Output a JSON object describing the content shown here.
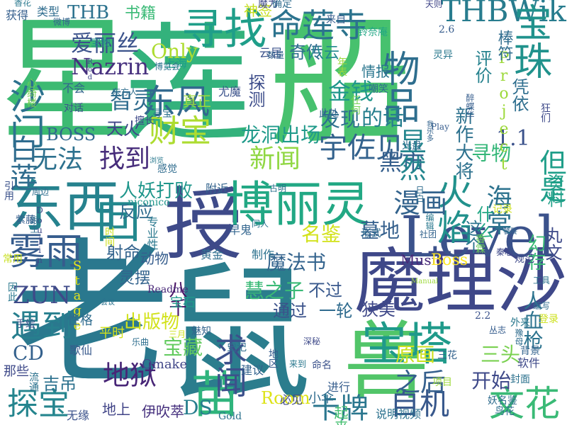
{
  "words": [
    {
      "text": "星",
      "color": "#3dba72"
    },
    {
      "text": "莲",
      "color": "#33b27c"
    },
    {
      "text": "船",
      "color": "#47c16e"
    },
    {
      "text": "老",
      "color": "#2a788e"
    },
    {
      "text": "鼠",
      "color": "#2b7d8d"
    },
    {
      "text": "魔理沙",
      "color": "#3f4889"
    },
    {
      "text": "Level",
      "color": "#3b528b"
    },
    {
      "text": "授",
      "color": "#3e4a89"
    },
    {
      "text": "博丽灵",
      "color": "#22a884"
    },
    {
      "text": "东西",
      "color": "#26828e"
    },
    {
      "text": "回",
      "color": "#23888e"
    },
    {
      "text": "兽",
      "color": "#52c569"
    },
    {
      "text": "寻找",
      "color": "#1f9e89"
    },
    {
      "text": "命莲寺",
      "color": "#2c738e"
    },
    {
      "text": "THBWiki",
      "color": "#287c8e"
    },
    {
      "text": "宝珠",
      "color": "#20928c"
    },
    {
      "text": "物品",
      "color": "#2e6e8e"
    },
    {
      "text": "雾雨",
      "color": "#365c8d"
    },
    {
      "text": "宝塔",
      "color": "#1f9a8a"
    },
    {
      "text": "苗",
      "color": "#2fb47c"
    },
    {
      "text": "火焰",
      "color": "#21918c"
    },
    {
      "text": "东风",
      "color": "#31688e"
    },
    {
      "text": "沙门",
      "color": "#2c728e"
    },
    {
      "text": "白莲",
      "color": "#2f6c8e"
    },
    {
      "text": "地狱",
      "color": "#482677"
    },
    {
      "text": "遇到",
      "color": "#277f8e"
    },
    {
      "text": "探宝",
      "color": "#25858e"
    },
    {
      "text": "卡牌",
      "color": "#2a768e"
    },
    {
      "text": "自机",
      "color": "#38588c"
    },
    {
      "text": "文花",
      "color": "#3aba76"
    },
    {
      "text": "财宝",
      "color": "#addc30"
    },
    {
      "text": "宇佐见",
      "color": "#33628d"
    },
    {
      "text": "找到",
      "color": "#472d7b"
    },
    {
      "text": "无法",
      "color": "#2d718e"
    },
    {
      "text": "黑市",
      "color": "#355f8d"
    },
    {
      "text": "新闻",
      "color": "#90d743"
    },
    {
      "text": "求闻",
      "color": "#3c508b"
    },
    {
      "text": "显然",
      "color": "#24868e"
    },
    {
      "text": "但是",
      "color": "#1f9e89"
    },
    {
      "text": "海棠",
      "color": "#2c728e"
    },
    {
      "text": "漫画",
      "color": "#33638d"
    },
    {
      "text": "Nazrin",
      "color": "#46307e"
    },
    {
      "text": "爱丽丝",
      "color": "#3b528b"
    },
    {
      "text": "Only",
      "color": "#addc30"
    },
    {
      "text": "智灵",
      "color": "#2f6c8e"
    },
    {
      "text": "天火",
      "color": "#404688"
    },
    {
      "text": "BOSS",
      "color": "#31688e"
    },
    {
      "text": "金钱",
      "color": "#1f968b"
    },
    {
      "text": "发现",
      "color": "#2d708e"
    },
    {
      "text": "的话",
      "color": "#277f8e"
    },
    {
      "text": "龙洞出场",
      "color": "#1f9a8a"
    },
    {
      "text": "寻物",
      "color": "#35b779"
    },
    {
      "text": "1.1",
      "color": "#3b528b"
    },
    {
      "text": "评价",
      "color": "#26828e"
    },
    {
      "text": "新作大将",
      "color": "#2d718e"
    },
    {
      "text": "凭依",
      "color": "#2e6e8e"
    },
    {
      "text": "资料",
      "color": "#1fa088"
    },
    {
      "text": "丸文",
      "color": "#3e4a89"
    },
    {
      "text": "慧之子",
      "color": "#3aba76"
    },
    {
      "text": "不过",
      "color": "#38588c"
    },
    {
      "text": "魔法书",
      "color": "#33638d"
    },
    {
      "text": "ZUN",
      "color": "#3e4a89"
    },
    {
      "text": "CD",
      "color": "#34618d"
    },
    {
      "text": "出版物",
      "color": "#d2e21b"
    },
    {
      "text": "宝藏",
      "color": "#63cb5f"
    },
    {
      "text": "之后",
      "color": "#355f8d"
    },
    {
      "text": "开始",
      "color": "#3e4989"
    },
    {
      "text": "原画",
      "color": "#cde11d"
    },
    {
      "text": "人血枪",
      "color": "#2c738e"
    },
    {
      "text": "墓地",
      "color": "#35608d"
    },
    {
      "text": "名鉴",
      "color": "#d2e21b"
    },
    {
      "text": "人妖打败",
      "color": "#1f968b"
    },
    {
      "text": "反应",
      "color": "#2f6c8e"
    },
    {
      "text": "射命",
      "color": "#33638d"
    },
    {
      "text": "八千",
      "color": "#471063"
    },
    {
      "text": "动物",
      "color": "#365d8d"
    },
    {
      "text": "通过",
      "color": "#3b528b"
    },
    {
      "text": "一轮",
      "color": "#2f6b8e"
    },
    {
      "text": "狭美",
      "color": "#3f4889"
    },
    {
      "text": "这个",
      "color": "#2c738e"
    },
    {
      "text": "什么",
      "color": "#22a785"
    },
    {
      "text": "幻存",
      "color": "#3aba76"
    },
    {
      "text": "DS",
      "color": "#277e8e"
    },
    {
      "text": "三头",
      "color": "#7ad151"
    },
    {
      "text": "吉吊",
      "color": "#2c718e"
    },
    {
      "text": "地上",
      "color": "#414487"
    },
    {
      "text": "伊吹萃",
      "color": "#46307e"
    },
    {
      "text": "Room",
      "color": "#dde318"
    },
    {
      "text": "Music",
      "color": "#482878"
    },
    {
      "text": "Boss",
      "color": "#fde725"
    },
    {
      "text": "THB",
      "color": "#2c728e"
    },
    {
      "text": "书籍",
      "color": "#3aba76"
    },
    {
      "text": "神签",
      "color": "#c8e020"
    },
    {
      "text": "奇传",
      "color": "#2e6d8e"
    },
    {
      "text": "八云",
      "color": "#23888e"
    },
    {
      "text": "Project",
      "color": "#9dd93b"
    },
    {
      "text": "真正",
      "color": "#9dd93b"
    },
    {
      "text": "探测",
      "color": "#3d4d8a"
    },
    {
      "text": "尤魔",
      "color": "#3b528b"
    },
    {
      "text": "情报",
      "color": "#2a768e"
    },
    {
      "text": "Stage",
      "color": "#e5e419"
    },
    {
      "text": "灵摆",
      "color": "#33638d"
    },
    {
      "text": "Readme",
      "color": "#482878"
    },
    {
      "text": "宝石",
      "color": "#1f9a8a"
    },
    {
      "text": "性格",
      "color": "#2f6c8e"
    },
    {
      "text": "平时",
      "color": "#d5e21a"
    },
    {
      "text": "黄金",
      "color": "#2e6e8e"
    },
    {
      "text": "制作",
      "color": "#2c728e"
    },
    {
      "text": "早鬼",
      "color": "#32658e"
    },
    {
      "text": "niconico",
      "color": "#1f968b"
    },
    {
      "text": "专业性",
      "color": "#2a788e"
    },
    {
      "text": "时间",
      "color": "#cde11d"
    },
    {
      "text": "那些",
      "color": "#3e4989"
    },
    {
      "text": "Omake",
      "color": "#404688"
    },
    {
      "text": "歌仙",
      "color": "#38598c"
    },
    {
      "text": "建议",
      "color": "#33638d"
    },
    {
      "text": "说明视频",
      "color": "#2c728e"
    },
    {
      "text": "小伞",
      "color": "#2f6c8e"
    },
    {
      "text": "必见",
      "color": "#3e4989"
    },
    {
      "text": "起来",
      "color": "#44bf70"
    },
    {
      "text": "进行",
      "color": "#365d8d"
    },
    {
      "text": "无缘",
      "color": "#3b528b"
    },
    {
      "text": "Gold",
      "color": "#2c728e"
    },
    {
      "text": "获得",
      "color": "#355f8d"
    },
    {
      "text": "类型",
      "color": "#2f6c8e"
    },
    {
      "text": "微博",
      "color": "#33638d"
    },
    {
      "text": "香花",
      "color": "#2a788e"
    },
    {
      "text": "魔力",
      "color": "#3e4989"
    },
    {
      "text": "确定",
      "color": "#2f6b8e"
    },
    {
      "text": "天则",
      "color": "#404688"
    },
    {
      "text": "宝物",
      "color": "#23898e"
    },
    {
      "text": "来自",
      "color": "#365c8d"
    },
    {
      "text": "铃奈庵",
      "color": "#22a785"
    },
    {
      "text": "2.6",
      "color": "#365c8d"
    },
    {
      "text": "棒符",
      "color": "#2f6c8e"
    },
    {
      "text": "云居",
      "color": "#3b528b"
    },
    {
      "text": "数量",
      "color": "#33638d"
    },
    {
      "text": "年表",
      "color": "#9dd93b"
    },
    {
      "text": "灵异",
      "color": "#2a788e"
    },
    {
      "text": "上海",
      "color": "#1f9e89"
    },
    {
      "text": "博览会",
      "color": "#2c728e"
    },
    {
      "text": "Rod",
      "color": "#3e4989"
    },
    {
      "text": "东方人",
      "color": "#2e6e8e"
    },
    {
      "text": "醉蝶华",
      "color": "#365d8d"
    },
    {
      "text": "不会",
      "color": "#33638d"
    },
    {
      "text": "对话",
      "color": "#3b528b"
    },
    {
      "text": "心绮楼",
      "color": "#75d054"
    },
    {
      "text": "擅长",
      "color": "#3e4989"
    },
    {
      "text": "寻宝",
      "color": "#2c728e"
    },
    {
      "text": "此处",
      "color": "#33638d"
    },
    {
      "text": "光盘",
      "color": "#2f6c8e"
    },
    {
      "text": "任何",
      "color": "#75d054"
    },
    {
      "text": "Play",
      "color": "#365c8d"
    },
    {
      "text": "狂们",
      "color": "#3e4989"
    },
    {
      "text": "感觉",
      "color": "#2f6c8e"
    },
    {
      "text": "浏览",
      "color": "#2a788e"
    },
    {
      "text": "附近",
      "color": "#33638d"
    },
    {
      "text": "引用",
      "color": "#3b528b"
    },
    {
      "text": "周边",
      "color": "#2e6e8e"
    },
    {
      "text": "常用",
      "color": "#c8e020"
    },
    {
      "text": "会议",
      "color": "#2c728e"
    },
    {
      "text": "香霖",
      "color": "#6ccd5a"
    },
    {
      "text": "形式",
      "color": "#2f6c8e"
    },
    {
      "text": "Manual",
      "color": "#9dd93b"
    },
    {
      "text": "记录",
      "color": "#cde11d"
    },
    {
      "text": "饕餮",
      "color": "#33638d"
    },
    {
      "text": "规范",
      "color": "#3e4989"
    },
    {
      "text": "工具",
      "color": "#2c728e"
    },
    {
      "text": "登录",
      "color": "#cde11d"
    },
    {
      "text": "编写",
      "color": "#2f6c8e"
    },
    {
      "text": "外来",
      "color": "#2a788e"
    },
    {
      "text": "2.2",
      "color": "#3b528b"
    },
    {
      "text": "丛志",
      "color": "#365d8d"
    },
    {
      "text": "豫母",
      "color": "#2f6c8e"
    },
    {
      "text": "背景",
      "color": "#33638d"
    },
    {
      "text": "软件",
      "color": "#3e4989"
    },
    {
      "text": "封面",
      "color": "#2c728e"
    },
    {
      "text": "鸟花",
      "color": "#2e6e8e"
    },
    {
      "text": "妖名鉴",
      "color": "#2f6c8e"
    },
    {
      "text": "项目",
      "color": "#9dd93b"
    },
    {
      "text": "三花",
      "color": "#33638d"
    },
    {
      "text": "命名",
      "color": "#3b528b"
    },
    {
      "text": "来到",
      "color": "#2a788e"
    },
    {
      "text": "地区",
      "color": "#365c8d"
    },
    {
      "text": "深秘",
      "color": "#3e4989"
    },
    {
      "text": "流通",
      "color": "#2c728e"
    },
    {
      "text": "史记",
      "color": "#2f6c8e"
    },
    {
      "text": "魅知",
      "color": "#33638d"
    },
    {
      "text": "三月",
      "color": "#cde11d"
    },
    {
      "text": "乐曲",
      "color": "#2e6e8e"
    },
    {
      "text": "手绘",
      "color": "#3b528b"
    },
    {
      "text": "因此",
      "color": "#2a788e"
    },
    {
      "text": "Doujin",
      "color": "#3e4989"
    },
    {
      "text": "紫藤",
      "color": "#365d8d"
    },
    {
      "text": "跟主",
      "color": "#2f6c8e"
    },
    {
      "text": "同人",
      "color": "#2c728e"
    },
    {
      "text": "社团",
      "color": "#33638d"
    },
    {
      "text": "编辑",
      "color": "#2a788e"
    },
    {
      "text": "日白",
      "color": "#2f6c8e"
    },
    {
      "text": "我乐多",
      "color": "#33638d"
    },
    {
      "text": "嘲笑",
      "color": "#2e6e8e"
    },
    {
      "text": "秦心",
      "color": "#3e4989"
    },
    {
      "text": "古明",
      "color": "#2c728e"
    }
  ]
}
